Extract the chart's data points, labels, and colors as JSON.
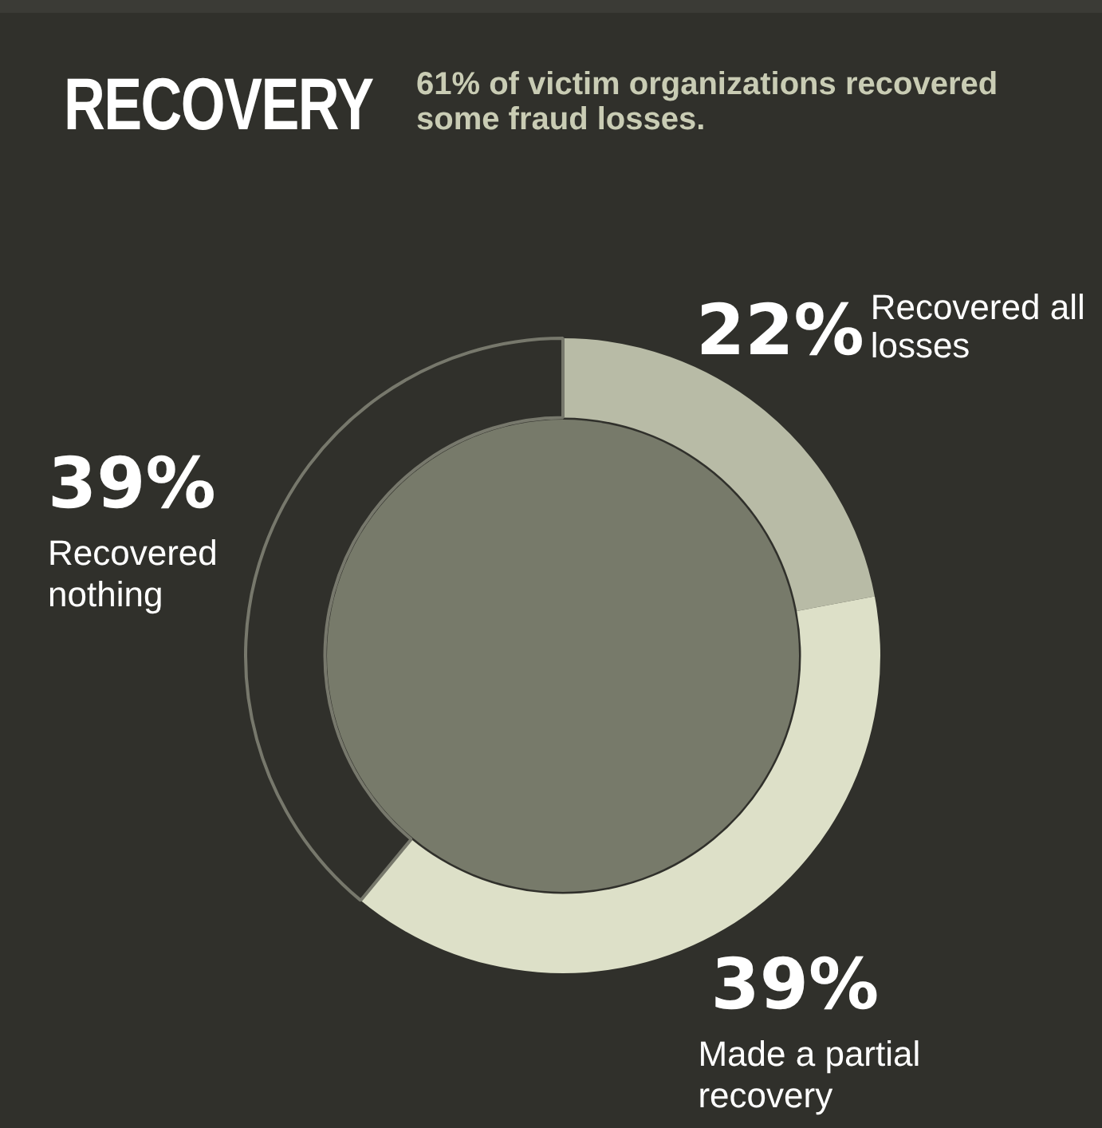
{
  "chart_data": {
    "type": "donut",
    "title": "RECOVERY",
    "subtitle": "61% of victim organizations recovered some fraud losses.",
    "categories": [
      "Recovered all losses",
      "Made a partial recovery",
      "Recovered nothing"
    ],
    "values": [
      22,
      39,
      39
    ],
    "value_labels": [
      "22%",
      "39%",
      "39%"
    ],
    "colors": [
      "#b8bba6",
      "#dde0c8",
      "#30302b"
    ],
    "legend": false
  }
}
